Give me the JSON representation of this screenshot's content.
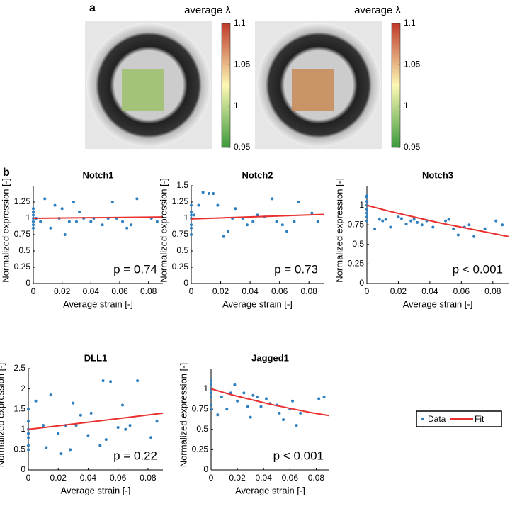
{
  "panel_labels": [
    "a",
    "b"
  ],
  "colorbars": [
    {
      "title": "average λ",
      "lim": [
        0.95,
        1.1
      ],
      "ticks": [
        0.95,
        1,
        1.05,
        1.1
      ]
    },
    {
      "title": "average λ",
      "lim": [
        0.95,
        1.1
      ],
      "ticks": [
        0.95,
        1,
        1.05,
        1.1
      ]
    }
  ],
  "chart_data": [
    {
      "type": "scatter",
      "title": "Notch1",
      "xlabel": "Average strain [-]",
      "ylabel": "Normalized expression [-]",
      "annotation": "p = 0.74",
      "xlim": [
        0,
        0.09
      ],
      "ylim": [
        0,
        1.5
      ],
      "xticks": [
        0,
        0.02,
        0.04,
        0.06,
        0.08
      ],
      "yticks": [
        0,
        0.25,
        0.5,
        0.75,
        1,
        1.25
      ],
      "series": [
        {
          "name": "Data",
          "color": "#2e7fc0",
          "x": [
            0,
            0,
            0,
            0,
            0,
            0,
            0,
            0.002,
            0.005,
            0.008,
            0.012,
            0.015,
            0.018,
            0.02,
            0.022,
            0.025,
            0.028,
            0.03,
            0.032,
            0.035,
            0.04,
            0.042,
            0.048,
            0.052,
            0.055,
            0.058,
            0.062,
            0.065,
            0.068,
            0.072,
            0.082,
            0.086
          ],
          "values": [
            1,
            1.05,
            0.95,
            1.1,
            0.9,
            0.85,
            1.15,
            1,
            0.95,
            1.3,
            0.85,
            1.2,
            1,
            1.15,
            0.75,
            0.95,
            1.25,
            0.95,
            1.1,
            1,
            0.95,
            1,
            0.9,
            1,
            1.25,
            1,
            0.95,
            0.85,
            0.9,
            1.3,
            1,
            0.95
          ]
        },
        {
          "name": "Fit",
          "color": "#e8312f",
          "x": [
            0,
            0.09
          ],
          "values": [
            1,
            1.02
          ]
        }
      ]
    },
    {
      "type": "scatter",
      "title": "Notch2",
      "xlabel": "Average strain [-]",
      "ylabel": "Normalized expression [-]",
      "annotation": "p = 0.73",
      "xlim": [
        0,
        0.09
      ],
      "ylim": [
        0,
        1.5
      ],
      "xticks": [
        0,
        0.02,
        0.04,
        0.06,
        0.08
      ],
      "yticks": [
        0,
        0.25,
        0.5,
        0.75,
        1,
        1.25,
        1.5
      ],
      "series": [
        {
          "name": "Data",
          "color": "#2e7fc0",
          "x": [
            0,
            0,
            0,
            0,
            0,
            0,
            0,
            0.002,
            0.005,
            0.008,
            0.012,
            0.015,
            0.018,
            0.022,
            0.025,
            0.028,
            0.03,
            0.035,
            0.038,
            0.042,
            0.045,
            0.05,
            0.055,
            0.058,
            0.062,
            0.065,
            0.07,
            0.073,
            0.082,
            0.086
          ],
          "values": [
            1,
            1.1,
            0.9,
            1.2,
            0.85,
            0.75,
            1.05,
            1.05,
            1.2,
            1.4,
            1.38,
            1.38,
            1.2,
            0.72,
            0.8,
            1.0,
            1.15,
            1.0,
            0.9,
            0.95,
            1.05,
            1.02,
            1.3,
            0.95,
            0.9,
            0.8,
            0.95,
            1.25,
            1.08,
            0.95
          ]
        },
        {
          "name": "Fit",
          "color": "#e8312f",
          "x": [
            0,
            0.09
          ],
          "values": [
            0.99,
            1.06
          ]
        }
      ]
    },
    {
      "type": "scatter",
      "title": "Notch3",
      "xlabel": "Average strain [-]",
      "ylabel": "Normalized expression [-]",
      "annotation": "p < 0.001",
      "xlim": [
        0,
        0.09
      ],
      "ylim": [
        0,
        1.25
      ],
      "xticks": [
        0,
        0.02,
        0.04,
        0.06,
        0.08
      ],
      "yticks": [
        0,
        0.25,
        0.5,
        0.75,
        1
      ],
      "series": [
        {
          "name": "Data",
          "color": "#2e7fc0",
          "x": [
            0,
            0,
            0,
            0,
            0,
            0,
            0,
            0,
            0.005,
            0.008,
            0.01,
            0.012,
            0.015,
            0.02,
            0.022,
            0.025,
            0.028,
            0.03,
            0.032,
            0.035,
            0.038,
            0.042,
            0.05,
            0.052,
            0.055,
            0.058,
            0.062,
            0.065,
            0.068,
            0.075,
            0.082,
            0.086
          ],
          "values": [
            1,
            1.05,
            0.95,
            1.1,
            0.9,
            0.85,
            1.12,
            0.8,
            0.7,
            0.82,
            0.8,
            0.82,
            0.72,
            0.85,
            0.83,
            0.76,
            0.8,
            0.82,
            0.78,
            0.75,
            0.8,
            0.72,
            0.8,
            0.82,
            0.7,
            0.62,
            0.72,
            0.75,
            0.6,
            0.7,
            0.8,
            0.75
          ]
        },
        {
          "name": "Fit",
          "color": "#e8312f",
          "x": [
            0,
            0.015,
            0.03,
            0.045,
            0.06,
            0.075,
            0.09
          ],
          "values": [
            1,
            0.92,
            0.85,
            0.78,
            0.72,
            0.66,
            0.6
          ]
        }
      ]
    },
    {
      "type": "scatter",
      "title": "DLL1",
      "xlabel": "Average strain [-]",
      "ylabel": "Normalized expression [-]",
      "annotation": "p = 0.22",
      "xlim": [
        0,
        0.09
      ],
      "ylim": [
        0,
        2.5
      ],
      "xticks": [
        0,
        0.02,
        0.04,
        0.06,
        0.08
      ],
      "yticks": [
        0,
        0.5,
        1,
        1.5,
        2,
        2.5
      ],
      "series": [
        {
          "name": "Data",
          "color": "#2e7fc0",
          "x": [
            0,
            0,
            0,
            0,
            0,
            0,
            0,
            0.005,
            0.01,
            0.012,
            0.015,
            0.02,
            0.022,
            0.025,
            0.028,
            0.03,
            0.032,
            0.035,
            0.04,
            0.042,
            0.048,
            0.05,
            0.052,
            0.055,
            0.06,
            0.063,
            0.065,
            0.068,
            0.073,
            0.082,
            0.086
          ],
          "values": [
            1,
            1.2,
            0.8,
            1.5,
            0.6,
            0.5,
            0.9,
            1.7,
            1.1,
            0.55,
            1.85,
            0.9,
            0.4,
            1.1,
            0.5,
            1.65,
            1.1,
            1.35,
            0.85,
            1.4,
            0.6,
            2.2,
            0.75,
            2.18,
            1.05,
            1.6,
            1.0,
            1.1,
            2.2,
            0.8,
            1.2
          ]
        },
        {
          "name": "Fit",
          "color": "#e8312f",
          "x": [
            0,
            0.09
          ],
          "values": [
            1,
            1.4
          ]
        }
      ]
    },
    {
      "type": "scatter",
      "title": "Jagged1",
      "xlabel": "Average strain [-]",
      "ylabel": "Normalized expression [-]",
      "annotation": "p < 0.001",
      "xlim": [
        0,
        0.09
      ],
      "ylim": [
        0,
        1.25
      ],
      "xticks": [
        0,
        0.02,
        0.04,
        0.06,
        0.08
      ],
      "yticks": [
        0,
        0.25,
        0.5,
        0.75,
        1
      ],
      "series": [
        {
          "name": "Data",
          "color": "#2e7fc0",
          "x": [
            0,
            0,
            0,
            0,
            0,
            0,
            0,
            0.005,
            0.008,
            0.012,
            0.015,
            0.018,
            0.02,
            0.025,
            0.028,
            0.03,
            0.032,
            0.035,
            0.038,
            0.042,
            0.045,
            0.05,
            0.052,
            0.055,
            0.06,
            0.062,
            0.065,
            0.068,
            0.082,
            0.086
          ],
          "values": [
            1,
            1.05,
            0.9,
            1.1,
            0.8,
            0.75,
            0.95,
            0.68,
            0.9,
            0.75,
            0.95,
            1.05,
            0.85,
            0.95,
            0.78,
            0.65,
            0.92,
            0.9,
            0.78,
            0.88,
            0.82,
            0.8,
            0.7,
            0.62,
            0.75,
            0.85,
            0.55,
            0.7,
            0.88,
            0.9
          ]
        },
        {
          "name": "Fit",
          "color": "#e8312f",
          "x": [
            0,
            0.015,
            0.03,
            0.045,
            0.06,
            0.075,
            0.09
          ],
          "values": [
            1,
            0.93,
            0.87,
            0.81,
            0.76,
            0.71,
            0.67
          ]
        }
      ]
    }
  ]
}
